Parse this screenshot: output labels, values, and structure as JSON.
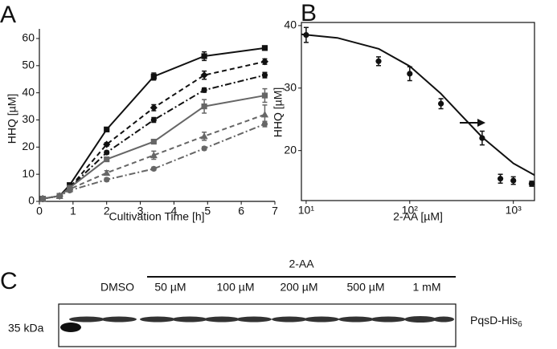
{
  "chart_data": [
    {
      "type": "line",
      "panel": "A",
      "x_label": "Cultivation Time [h]",
      "y_label": "HHQ [µM]",
      "x": [
        0.1,
        0.6,
        0.9,
        2,
        3.4,
        4.9,
        6.7
      ],
      "xlim": [
        0,
        7
      ],
      "xticks": [
        0,
        1,
        2,
        3,
        4,
        5,
        6,
        7
      ],
      "ylim": [
        0,
        60
      ],
      "yticks": [
        0,
        10,
        20,
        30,
        40,
        50,
        60
      ],
      "series": [
        {
          "color": "#111111",
          "dash": "solid",
          "marker": "square",
          "values": [
            1,
            2,
            6,
            26.5,
            46,
            53.5,
            56.5
          ],
          "errors": [
            0.5,
            0.5,
            0.7,
            0.6,
            1.3,
            1.6,
            0.8
          ]
        },
        {
          "color": "#111111",
          "dash": "dashed",
          "marker": "diamond",
          "values": [
            1,
            2,
            5,
            21,
            34.5,
            46.5,
            51.5
          ],
          "errors": [
            0.5,
            0.5,
            0.6,
            0.6,
            1.1,
            1.5,
            1.0
          ]
        },
        {
          "color": "#111111",
          "dash": "dashdot",
          "marker": "circle",
          "values": [
            1,
            2,
            5,
            18,
            30,
            41,
            46.5
          ],
          "errors": [
            0.5,
            0.5,
            0.6,
            0.6,
            0.9,
            0.8,
            1.0
          ]
        },
        {
          "color": "#666666",
          "dash": "solid",
          "marker": "square",
          "values": [
            1,
            2,
            5,
            15.5,
            22,
            35,
            39
          ],
          "errors": [
            0.5,
            0.5,
            0.6,
            0.7,
            0.8,
            2.5,
            2.5
          ]
        },
        {
          "color": "#666666",
          "dash": "dashed",
          "marker": "triangle",
          "values": [
            1,
            2,
            4.5,
            10.5,
            17,
            24,
            32
          ],
          "errors": [
            0.5,
            0.5,
            0.6,
            0.8,
            1.5,
            1.5,
            3.5
          ]
        },
        {
          "color": "#666666",
          "dash": "dashdot",
          "marker": "circle",
          "values": [
            1,
            2,
            4,
            8,
            12,
            19.5,
            28.5
          ],
          "errors": [
            0.5,
            0.5,
            0.6,
            0.6,
            0.6,
            0.6,
            1.0
          ]
        }
      ]
    },
    {
      "type": "scatter",
      "panel": "B",
      "x_label": "2-AA [µM]",
      "y_label": "HHQ [µM]",
      "log_x": true,
      "x": [
        10,
        50,
        100,
        200,
        500,
        750,
        1000,
        1500
      ],
      "xlim": [
        9,
        1600
      ],
      "xticks": [
        {
          "value": 10,
          "label": "10¹"
        },
        {
          "value": 100,
          "label": "10²"
        },
        {
          "value": 1000,
          "label": "10³"
        }
      ],
      "ylim": [
        12,
        40.5
      ],
      "yticks": [
        20,
        30,
        40
      ],
      "series": [
        {
          "color": "#111111",
          "marker": "circle",
          "values": [
            38.5,
            34.3,
            32.3,
            27.5,
            22,
            15.5,
            15.2,
            14.7
          ],
          "errors": [
            1.2,
            0.7,
            1.1,
            0.8,
            1.1,
            0.7,
            0.6,
            0.4
          ]
        }
      ]
    }
  ],
  "blot": {
    "panel": "C",
    "group_label": "2-AA",
    "lanes": [
      "DMSO",
      "50 µM",
      "100 µM",
      "200 µM",
      "500 µM",
      "1 mM"
    ],
    "marker": "35 kDa",
    "band_label": "PqsD-His",
    "band_label_sub": "6"
  }
}
